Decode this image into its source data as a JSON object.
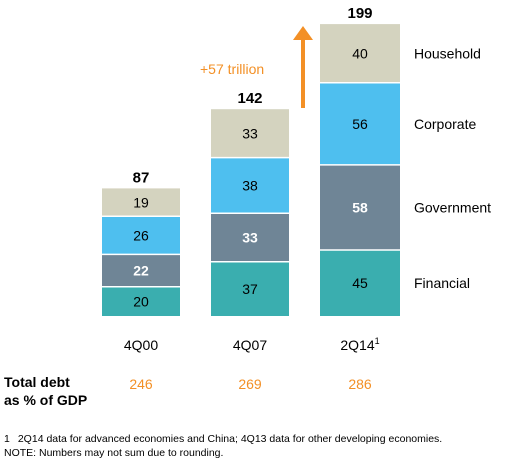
{
  "chart_data": {
    "type": "bar",
    "stacked": true,
    "categories": [
      "4Q00",
      "4Q07",
      "2Q14"
    ],
    "category_superscripts": [
      "",
      "",
      "1"
    ],
    "series": [
      {
        "name": "Financial",
        "values": [
          20,
          37,
          45
        ],
        "color": "#3aaeaf",
        "label_color": "#000000"
      },
      {
        "name": "Government",
        "values": [
          22,
          33,
          58
        ],
        "color": "#6f8596",
        "label_color": "#ffffff"
      },
      {
        "name": "Corporate",
        "values": [
          26,
          38,
          56
        ],
        "color": "#4ebfef",
        "label_color": "#000000"
      },
      {
        "name": "Household",
        "values": [
          19,
          33,
          40
        ],
        "color": "#d4d3bf",
        "label_color": "#000000"
      }
    ],
    "totals": [
      87,
      142,
      199
    ],
    "annotation": {
      "text": "+57 trillion",
      "color": "#f39026"
    },
    "ratio_row": {
      "title_lines": [
        "Total debt",
        "as % of GDP"
      ],
      "values": [
        "246",
        "269",
        "286"
      ],
      "color": "#f39026"
    },
    "legend_position": "right",
    "grid": false
  },
  "footnotes": [
    {
      "number": "1",
      "text": "2Q14 data for advanced economies and China; 4Q13 data for other developing economies."
    },
    {
      "number": "",
      "text": "NOTE: Numbers may not sum due to rounding."
    }
  ]
}
